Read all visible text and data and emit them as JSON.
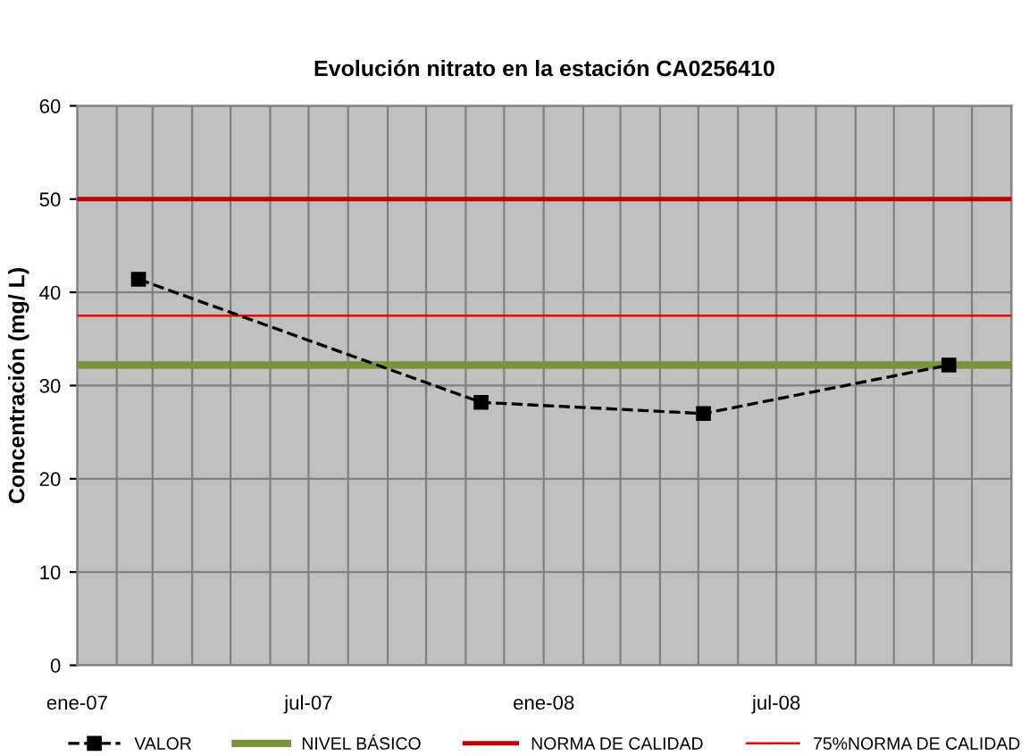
{
  "chart_data": {
    "type": "line",
    "title": "Evolución nitrato en la estación CA0256410",
    "ylabel": "Concentración (mg/ L)",
    "x": [
      "2007-02-18",
      "2007-11-13",
      "2008-05-05",
      "2008-11-13"
    ],
    "series": [
      {
        "name": "VALOR",
        "color": "#000000",
        "values": [
          41.4,
          28.2,
          27.0,
          32.2
        ],
        "marker": "square",
        "line_style": "dashed"
      }
    ],
    "ref_lines": [
      {
        "axis": "y",
        "value": 32.2,
        "label": "NIVEL BÁSICO",
        "color": "#77933c",
        "line_style": "solid"
      },
      {
        "axis": "y",
        "value": 50,
        "label": "NORMA DE CALIDAD",
        "color": "#c00000",
        "line_style": "solid"
      },
      {
        "axis": "y",
        "value": 37.5,
        "label": "75%NORMA DE CALIDAD",
        "color": "#ff0000",
        "line_style": "solid"
      }
    ],
    "xlim": [
      "2007-01-01",
      "2009-01-01"
    ],
    "xticks": [
      {
        "value": "2007-01-01",
        "label": "ene-07"
      },
      {
        "value": "2007-02-01",
        "label": null
      },
      {
        "value": "2007-03-01",
        "label": null
      },
      {
        "value": "2007-04-01",
        "label": null
      },
      {
        "value": "2007-05-01",
        "label": null
      },
      {
        "value": "2007-06-01",
        "label": null
      },
      {
        "value": "2007-07-01",
        "label": "jul-07"
      },
      {
        "value": "2007-08-01",
        "label": null
      },
      {
        "value": "2007-09-01",
        "label": null
      },
      {
        "value": "2007-10-01",
        "label": null
      },
      {
        "value": "2007-11-01",
        "label": null
      },
      {
        "value": "2007-12-01",
        "label": null
      },
      {
        "value": "2008-01-01",
        "label": "ene-08"
      },
      {
        "value": "2008-02-01",
        "label": null
      },
      {
        "value": "2008-03-01",
        "label": null
      },
      {
        "value": "2008-04-01",
        "label": null
      },
      {
        "value": "2008-05-01",
        "label": null
      },
      {
        "value": "2008-06-01",
        "label": null
      },
      {
        "value": "2008-07-01",
        "label": "jul-08"
      },
      {
        "value": "2008-08-01",
        "label": null
      },
      {
        "value": "2008-09-01",
        "label": null
      },
      {
        "value": "2008-10-01",
        "label": null
      },
      {
        "value": "2008-11-01",
        "label": null
      },
      {
        "value": "2008-12-01",
        "label": null
      },
      {
        "value": "2009-01-01",
        "label": null
      }
    ],
    "ylim": [
      0,
      60
    ],
    "yticks": [
      0,
      10,
      20,
      30,
      40,
      50,
      60
    ],
    "grid": true,
    "legend": "bottom"
  }
}
